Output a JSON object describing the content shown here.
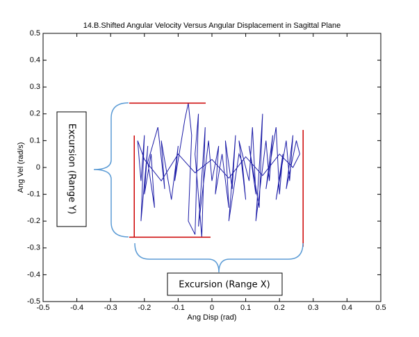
{
  "chart_data": {
    "type": "line",
    "title": "14.B.Shifted Angular Velocity Versus Angular Displacement in Sagittal Plane",
    "x_label": "Ang Disp (rad)",
    "y_label": "Ang Vel (rad/s)",
    "xlim": [
      -0.5,
      0.5
    ],
    "ylim": [
      -0.5,
      0.5
    ],
    "xticks": [
      -0.5,
      -0.4,
      -0.3,
      -0.2,
      -0.1,
      0,
      0.1,
      0.2,
      0.3,
      0.4,
      0.5
    ],
    "yticks": [
      -0.5,
      -0.4,
      -0.3,
      -0.2,
      -0.1,
      0,
      0.1,
      0.2,
      0.3,
      0.4,
      0.5
    ],
    "series": [
      {
        "color": "#1a1aa6",
        "x": [
          -0.22,
          -0.21,
          -0.2,
          -0.21,
          -0.19,
          -0.2,
          -0.18,
          -0.17,
          -0.19,
          -0.16,
          -0.14,
          -0.15,
          -0.12,
          -0.1,
          -0.11,
          -0.08,
          -0.07,
          -0.06,
          -0.07,
          -0.05,
          -0.04,
          -0.05,
          -0.03,
          -0.02,
          -0.04,
          -0.01,
          0.0,
          0.02,
          0.01,
          0.03,
          0.05,
          0.04,
          0.06,
          0.07,
          0.05,
          0.08,
          0.09,
          0.1,
          0.08,
          0.11,
          0.12,
          0.13,
          0.11,
          0.14,
          0.15,
          0.13,
          0.16,
          0.17,
          0.18,
          0.16,
          0.19,
          0.2,
          0.21,
          0.19,
          0.22,
          0.23,
          0.24,
          0.22,
          0.25,
          0.26,
          0.24,
          0.2,
          0.15,
          0.1,
          0.05,
          0.0,
          -0.05,
          -0.1,
          -0.15,
          -0.2,
          -0.22
        ],
        "values": [
          0.1,
          -0.05,
          0.12,
          -0.2,
          0.08,
          -0.1,
          0.05,
          -0.15,
          0.02,
          0.15,
          -0.08,
          0.1,
          -0.12,
          0.08,
          -0.05,
          0.18,
          0.24,
          0.12,
          -0.2,
          -0.25,
          0.2,
          0.05,
          -0.26,
          0.15,
          -0.22,
          0.1,
          -0.05,
          0.08,
          -0.1,
          0.05,
          -0.15,
          0.1,
          -0.08,
          0.12,
          -0.2,
          0.05,
          0.02,
          -0.12,
          0.1,
          -0.05,
          0.15,
          -0.1,
          0.08,
          -0.15,
          0.2,
          -0.2,
          0.1,
          -0.05,
          0.12,
          -0.08,
          0.15,
          -0.1,
          0.05,
          -0.12,
          0.1,
          -0.05,
          0.12,
          -0.08,
          0.1,
          0.05,
          0.0,
          0.05,
          -0.03,
          0.04,
          -0.04,
          0.03,
          -0.02,
          0.05,
          -0.05,
          0.03,
          0.1
        ]
      }
    ],
    "x_range": [
      -0.23,
      0.27
    ],
    "y_range": [
      -0.26,
      0.24
    ],
    "range_color": "#cc0000",
    "annotations": [
      "Excursion (Range Y)",
      "Excursion (Range X)"
    ]
  }
}
